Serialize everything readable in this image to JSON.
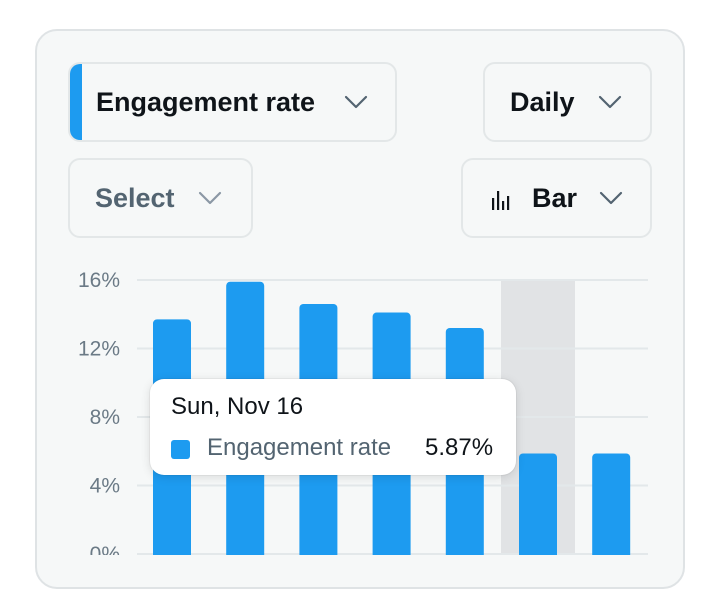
{
  "controls": {
    "metric": {
      "label": "Engagement rate",
      "accent_color": "#1d9bf0",
      "icon": "chevron-down-icon"
    },
    "interval": {
      "label": "Daily",
      "icon": "chevron-down-icon"
    },
    "compare": {
      "label": "Select",
      "icon": "chevron-down-icon"
    },
    "chart_type": {
      "label": "Bar",
      "icon": "bar-chart-icon"
    }
  },
  "tooltip": {
    "date": "Sun, Nov 16",
    "series": "Engagement rate",
    "value": "5.87%"
  },
  "colors": {
    "bar": "#1d9bf0",
    "highlight": "#e1e3e5",
    "grid": "#e3e8ea"
  },
  "chart_data": {
    "type": "bar",
    "xlabel": "",
    "ylabel": "",
    "ylim": [
      0,
      16
    ],
    "yticks": [
      0,
      4,
      8,
      12,
      16
    ],
    "ytick_labels": [
      "0%",
      "4%",
      "8%",
      "12%",
      "16%"
    ],
    "grid": true,
    "highlighted_index": 5,
    "series": [
      {
        "values": [
          13.7,
          15.9,
          14.6,
          14.1,
          13.2,
          5.87,
          5.87
        ]
      }
    ]
  }
}
